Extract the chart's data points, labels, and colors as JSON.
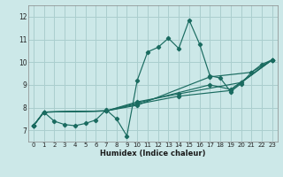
{
  "title": "",
  "xlabel": "Humidex (Indice chaleur)",
  "ylabel": "",
  "bg_color": "#cce8e8",
  "grid_color": "#aacece",
  "line_color": "#1a6b60",
  "xlim": [
    -0.5,
    23.5
  ],
  "ylim": [
    6.5,
    12.5
  ],
  "xticks": [
    0,
    1,
    2,
    3,
    4,
    5,
    6,
    7,
    8,
    9,
    10,
    11,
    12,
    13,
    14,
    15,
    16,
    17,
    18,
    19,
    20,
    21,
    22,
    23
  ],
  "yticks": [
    7,
    8,
    9,
    10,
    11,
    12
  ],
  "main_line": [
    [
      0,
      7.2
    ],
    [
      1,
      7.8
    ],
    [
      2,
      7.4
    ],
    [
      3,
      7.25
    ],
    [
      4,
      7.2
    ],
    [
      5,
      7.3
    ],
    [
      6,
      7.45
    ],
    [
      7,
      7.9
    ],
    [
      8,
      7.5
    ],
    [
      9,
      6.75
    ],
    [
      10,
      9.2
    ],
    [
      11,
      10.45
    ],
    [
      12,
      10.65
    ],
    [
      13,
      11.05
    ],
    [
      14,
      10.6
    ],
    [
      15,
      11.85
    ],
    [
      16,
      10.8
    ],
    [
      17,
      9.4
    ],
    [
      18,
      9.3
    ],
    [
      19,
      8.7
    ],
    [
      20,
      9.05
    ],
    [
      21,
      9.55
    ],
    [
      22,
      9.9
    ],
    [
      23,
      10.1
    ]
  ],
  "extra_lines": [
    [
      [
        0,
        7.2
      ],
      [
        1,
        7.8
      ],
      [
        7,
        7.85
      ],
      [
        10,
        8.15
      ],
      [
        14,
        8.5
      ],
      [
        19,
        8.75
      ],
      [
        23,
        10.1
      ]
    ],
    [
      [
        0,
        7.2
      ],
      [
        1,
        7.8
      ],
      [
        7,
        7.85
      ],
      [
        10,
        8.2
      ],
      [
        17,
        9.0
      ],
      [
        19,
        8.8
      ],
      [
        23,
        10.1
      ]
    ],
    [
      [
        0,
        7.2
      ],
      [
        1,
        7.8
      ],
      [
        7,
        7.85
      ],
      [
        10,
        8.1
      ],
      [
        17,
        9.35
      ],
      [
        21,
        9.55
      ],
      [
        23,
        10.1
      ]
    ],
    [
      [
        0,
        7.2
      ],
      [
        1,
        7.8
      ],
      [
        7,
        7.85
      ],
      [
        10,
        8.25
      ],
      [
        14,
        8.6
      ],
      [
        20,
        9.1
      ],
      [
        23,
        10.1
      ]
    ]
  ]
}
